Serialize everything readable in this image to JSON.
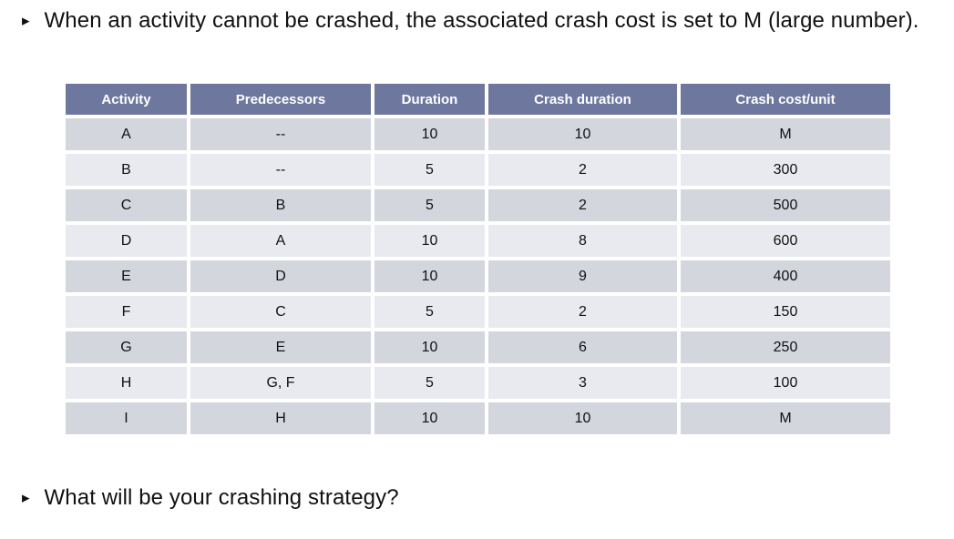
{
  "slide": {
    "bullet_glyph": "▸",
    "bullet1": "When an activity cannot be crashed, the associated crash cost is set to M (large number).",
    "bullet2": "What will be your crashing strategy?"
  },
  "table": {
    "headers": [
      "Activity",
      "Predecessors",
      "Duration",
      "Crash duration",
      "Crash cost/unit"
    ],
    "rows": [
      [
        "A",
        "--",
        "10",
        "10",
        "M"
      ],
      [
        "B",
        "--",
        "5",
        "2",
        "300"
      ],
      [
        "C",
        "B",
        "5",
        "2",
        "500"
      ],
      [
        "D",
        "A",
        "10",
        "8",
        "600"
      ],
      [
        "E",
        "D",
        "10",
        "9",
        "400"
      ],
      [
        "F",
        "C",
        "5",
        "2",
        "150"
      ],
      [
        "G",
        "E",
        "10",
        "6",
        "250"
      ],
      [
        "H",
        "G, F",
        "5",
        "3",
        "100"
      ],
      [
        "I",
        "H",
        "10",
        "10",
        "M"
      ]
    ]
  },
  "colors": {
    "header_bg": "#6E779E",
    "header_text": "#FFFFFF",
    "row_odd_bg": "#D4D6DE",
    "row_even_bg": "#E9EAEF",
    "body_text": "#111111"
  }
}
